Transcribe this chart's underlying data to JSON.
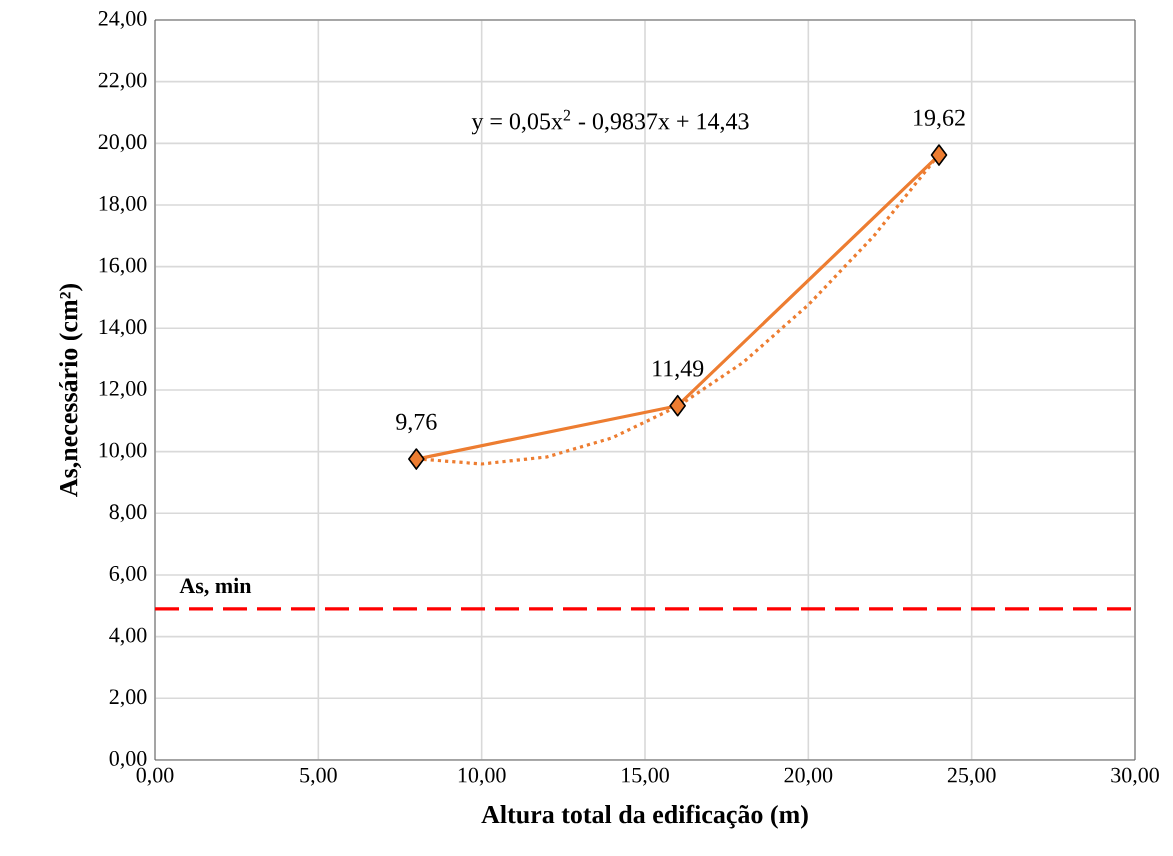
{
  "chart_data": {
    "type": "line",
    "xlabel": "Altura total da edificação (m)",
    "ylabel": "As,necessário (cm²)",
    "xlim": [
      0,
      30
    ],
    "ylim": [
      0,
      24
    ],
    "xticks": [
      {
        "value": 0,
        "label": "0,00"
      },
      {
        "value": 5,
        "label": "5,00"
      },
      {
        "value": 10,
        "label": "10,00"
      },
      {
        "value": 15,
        "label": "15,00"
      },
      {
        "value": 20,
        "label": "20,00"
      },
      {
        "value": 25,
        "label": "25,00"
      },
      {
        "value": 30,
        "label": "30,00"
      }
    ],
    "yticks": [
      {
        "value": 0,
        "label": "0,00"
      },
      {
        "value": 2,
        "label": "2,00"
      },
      {
        "value": 4,
        "label": "4,00"
      },
      {
        "value": 6,
        "label": "6,00"
      },
      {
        "value": 8,
        "label": "8,00"
      },
      {
        "value": 10,
        "label": "10,00"
      },
      {
        "value": 12,
        "label": "12,00"
      },
      {
        "value": 14,
        "label": "14,00"
      },
      {
        "value": 16,
        "label": "16,00"
      },
      {
        "value": 18,
        "label": "18,00"
      },
      {
        "value": 20,
        "label": "20,00"
      },
      {
        "value": 22,
        "label": "22,00"
      },
      {
        "value": 24,
        "label": "24,00"
      }
    ],
    "grid": true,
    "marker": "diamond",
    "series": [
      {
        "color": "#ed7d31",
        "x": [
          8,
          16,
          24
        ],
        "values": [
          9.76,
          11.49,
          19.62
        ],
        "value_labels": [
          "9,76",
          "11,49",
          "19,62"
        ],
        "line_style": "solid"
      },
      {
        "type": "line",
        "color": "#ed7d31",
        "x": [
          8,
          10,
          12,
          14,
          16,
          18,
          20,
          22,
          24
        ],
        "values": [
          9.77,
          9.6,
          9.83,
          10.45,
          11.47,
          12.89,
          14.76,
          16.99,
          19.64
        ],
        "line_style": "dotted",
        "marker": "none"
      }
    ],
    "ref_lines": [
      {
        "axis": "y",
        "value": 4.9,
        "label": "As, min",
        "color": "#ff0000",
        "line_style": "dashed"
      }
    ],
    "annotations": [
      "y = 0,05x$^{2}$ - 0,9837x + 14,43"
    ]
  }
}
